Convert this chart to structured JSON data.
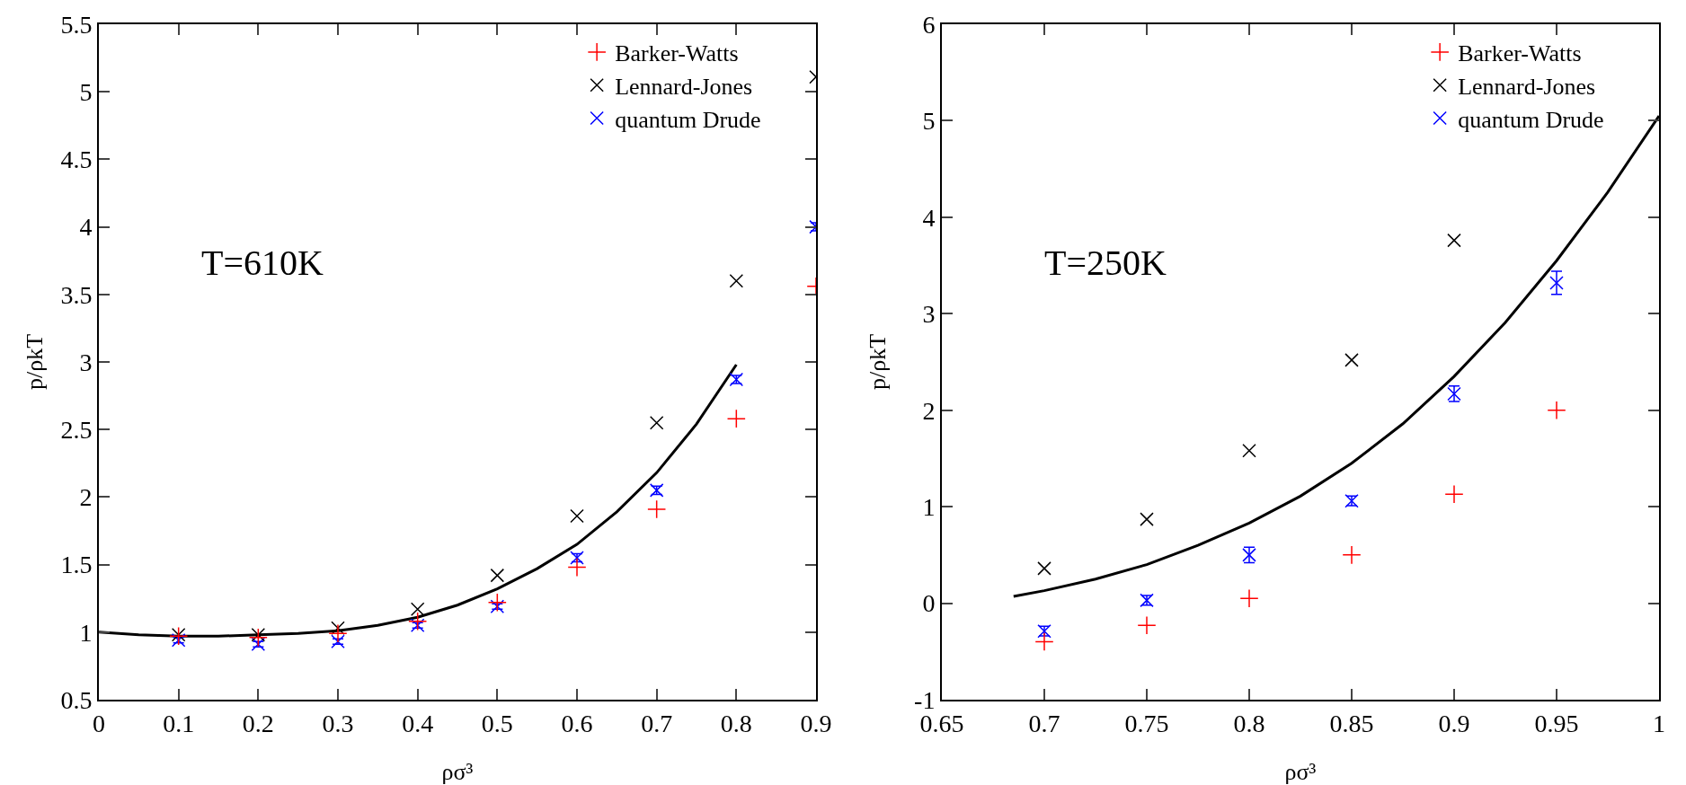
{
  "chart_data": [
    {
      "type": "scatter",
      "xlabel": "ρσ³",
      "ylabel": "p/ρkT",
      "annotations": [
        "T=610K"
      ],
      "legend": "top right",
      "grid": false,
      "xlim": [
        0,
        0.9
      ],
      "xticks": [
        0,
        0.1,
        0.2,
        0.3,
        0.4,
        0.5,
        0.6,
        0.7,
        0.8,
        0.9
      ],
      "ylim": [
        0.5,
        5.5
      ],
      "yticks": [
        0.5,
        1,
        1.5,
        2,
        2.5,
        3,
        3.5,
        4,
        4.5,
        5,
        5.5
      ],
      "series": [
        {
          "name": "Barker-Watts",
          "color": "#ff0000",
          "marker": "cross",
          "x": [
            0.1,
            0.2,
            0.3,
            0.4,
            0.5,
            0.6,
            0.7,
            0.8,
            0.9
          ],
          "values": [
            0.97,
            0.96,
            0.99,
            1.08,
            1.22,
            1.48,
            1.91,
            2.58,
            3.56
          ]
        },
        {
          "name": "Lennard-Jones",
          "color": "#000000",
          "marker": "x",
          "x": [
            0.1,
            0.2,
            0.3,
            0.4,
            0.5,
            0.6,
            0.7,
            0.8,
            0.9
          ],
          "values": [
            0.98,
            0.98,
            1.03,
            1.17,
            1.42,
            1.86,
            2.55,
            3.6,
            5.11
          ]
        },
        {
          "name": "quantum Drude",
          "color": "#0000ff",
          "marker": "x",
          "x": [
            0.1,
            0.2,
            0.3,
            0.4,
            0.5,
            0.6,
            0.7,
            0.8,
            0.9
          ],
          "values": [
            0.94,
            0.91,
            0.93,
            1.05,
            1.19,
            1.55,
            2.05,
            2.87,
            4.0
          ],
          "errors": [
            0.02,
            0.02,
            0.02,
            0.02,
            0.02,
            0.03,
            0.03,
            0.03,
            0.03
          ]
        },
        {
          "type": "line",
          "color": "#000000",
          "marker": "none",
          "x": [
            0,
            0.05,
            0.1,
            0.15,
            0.2,
            0.25,
            0.3,
            0.35,
            0.4,
            0.45,
            0.5,
            0.55,
            0.6,
            0.65,
            0.7,
            0.75,
            0.8
          ],
          "values": [
            1.0,
            0.98,
            0.97,
            0.97,
            0.98,
            0.99,
            1.01,
            1.05,
            1.11,
            1.2,
            1.32,
            1.47,
            1.65,
            1.89,
            2.18,
            2.54,
            2.98
          ]
        }
      ]
    },
    {
      "type": "scatter",
      "xlabel": "ρσ³",
      "ylabel": "p/ρkT",
      "annotations": [
        "T=250K"
      ],
      "legend": "top right",
      "grid": false,
      "xlim": [
        0.65,
        1
      ],
      "xticks": [
        0.65,
        0.7,
        0.75,
        0.8,
        0.85,
        0.9,
        0.95,
        1
      ],
      "ylim": [
        -1,
        6
      ],
      "yticks": [
        -1,
        0,
        1,
        2,
        3,
        4,
        5,
        6
      ],
      "series": [
        {
          "name": "Barker-Watts",
          "color": "#ff0000",
          "marker": "cross",
          "x": [
            0.7,
            0.75,
            0.8,
            0.85,
            0.9,
            0.95
          ],
          "values": [
            -0.4,
            -0.23,
            0.05,
            0.5,
            1.13,
            2.0
          ]
        },
        {
          "name": "Lennard-Jones",
          "color": "#000000",
          "marker": "x",
          "x": [
            0.7,
            0.75,
            0.8,
            0.85,
            0.9
          ],
          "values": [
            0.36,
            0.87,
            1.58,
            2.52,
            3.76
          ]
        },
        {
          "name": "quantum Drude",
          "color": "#0000ff",
          "marker": "x",
          "x": [
            0.7,
            0.75,
            0.8,
            0.85,
            0.9,
            0.95
          ],
          "values": [
            -0.29,
            0.03,
            0.5,
            1.06,
            2.17,
            3.32
          ],
          "errors": [
            0.05,
            0.05,
            0.08,
            0.05,
            0.08,
            0.12
          ]
        },
        {
          "type": "line",
          "color": "#000000",
          "marker": "none",
          "x": [
            0.685,
            0.7,
            0.725,
            0.75,
            0.775,
            0.8,
            0.825,
            0.85,
            0.875,
            0.9,
            0.925,
            0.95,
            0.975,
            1.0
          ],
          "values": [
            0.07,
            0.13,
            0.25,
            0.4,
            0.6,
            0.83,
            1.11,
            1.45,
            1.86,
            2.35,
            2.91,
            3.55,
            4.26,
            5.05
          ]
        }
      ]
    }
  ]
}
